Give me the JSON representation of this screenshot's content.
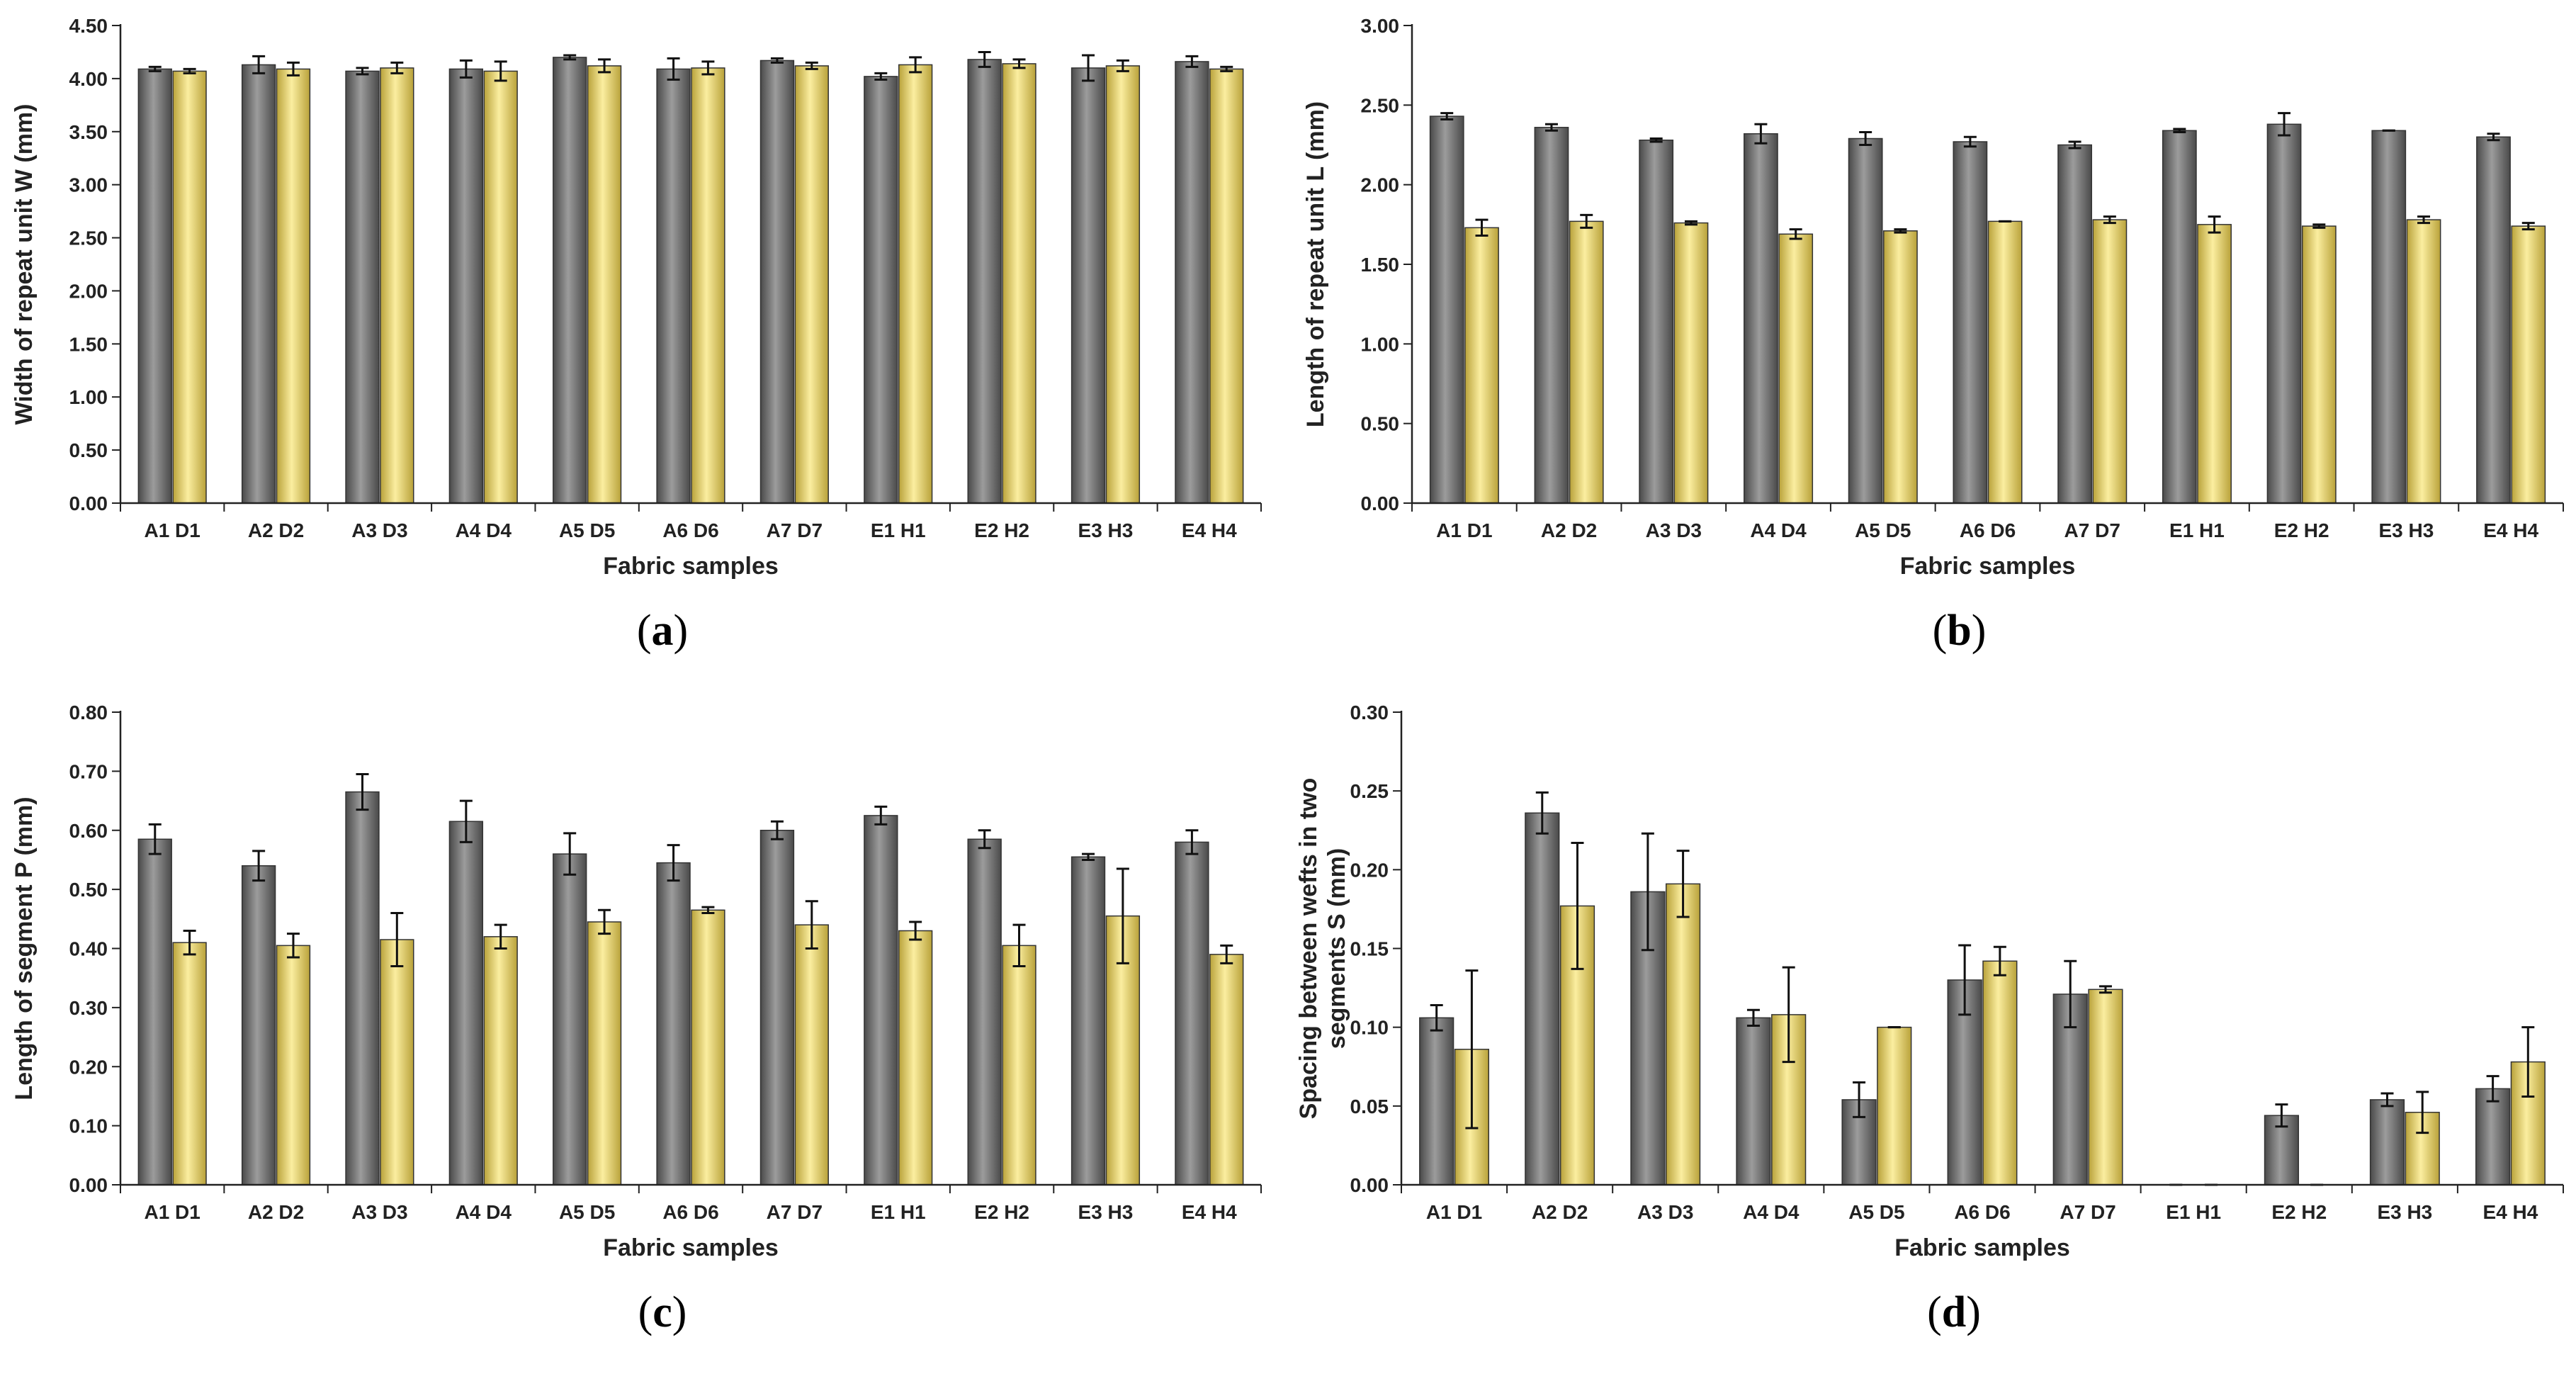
{
  "colors": {
    "series1": "#7a7a7a",
    "series1_dark": "#4a4a4a",
    "series2": "#f2dc6e",
    "series2_dark": "#b9a23a",
    "axis": "#222222"
  },
  "chart_data": [
    {
      "type": "bar",
      "caption_letter": "a",
      "ylabel": "Width of repeat unit  W (mm)",
      "xlabel": "Fabric samples",
      "ylim": [
        0,
        4.5
      ],
      "ytick_step": 0.5,
      "ytick_decimals": 2,
      "categories": [
        "A1 D1",
        "A2 D2",
        "A3 D3",
        "A4 D4",
        "A5 D5",
        "A6 D6",
        "A7 D7",
        "E1 H1",
        "E2 H2",
        "E3 H3",
        "E4 H4"
      ],
      "grid": false,
      "series": [
        {
          "values": [
            4.09,
            4.13,
            4.07,
            4.09,
            4.2,
            4.09,
            4.17,
            4.02,
            4.18,
            4.1,
            4.16
          ],
          "errors": [
            0.02,
            0.08,
            0.03,
            0.08,
            0.02,
            0.1,
            0.02,
            0.03,
            0.07,
            0.12,
            0.05
          ]
        },
        {
          "values": [
            4.07,
            4.09,
            4.1,
            4.07,
            4.12,
            4.1,
            4.12,
            4.13,
            4.14,
            4.12,
            4.09
          ],
          "errors": [
            0.02,
            0.06,
            0.05,
            0.09,
            0.06,
            0.06,
            0.03,
            0.07,
            0.04,
            0.05,
            0.02
          ]
        }
      ]
    },
    {
      "type": "bar",
      "caption_letter": "b",
      "ylabel": "Length of repeat unit  L (mm)",
      "xlabel": "Fabric samples",
      "ylim": [
        0,
        3.0
      ],
      "ytick_step": 0.5,
      "ytick_decimals": 2,
      "categories": [
        "A1 D1",
        "A2 D2",
        "A3 D3",
        "A4 D4",
        "A5 D5",
        "A6 D6",
        "A7 D7",
        "E1 H1",
        "E2 H2",
        "E3 H3",
        "E4 H4"
      ],
      "grid": false,
      "series": [
        {
          "values": [
            2.43,
            2.36,
            2.28,
            2.32,
            2.29,
            2.27,
            2.25,
            2.34,
            2.38,
            2.34,
            2.3
          ],
          "errors": [
            0.02,
            0.02,
            0.01,
            0.06,
            0.04,
            0.03,
            0.02,
            0.01,
            0.07,
            0.0,
            0.02
          ]
        },
        {
          "values": [
            1.73,
            1.77,
            1.76,
            1.69,
            1.71,
            1.77,
            1.78,
            1.75,
            1.74,
            1.78,
            1.74
          ],
          "errors": [
            0.05,
            0.04,
            0.01,
            0.03,
            0.01,
            0.0,
            0.02,
            0.05,
            0.01,
            0.02,
            0.02
          ]
        }
      ]
    },
    {
      "type": "bar",
      "caption_letter": "c",
      "ylabel": "Length of segment  P (mm)",
      "xlabel": "Fabric samples",
      "ylim": [
        0,
        0.8
      ],
      "ytick_step": 0.1,
      "ytick_decimals": 2,
      "categories": [
        "A1 D1",
        "A2 D2",
        "A3 D3",
        "A4 D4",
        "A5 D5",
        "A6 D6",
        "A7 D7",
        "E1 H1",
        "E2 H2",
        "E3 H3",
        "E4 H4"
      ],
      "grid": false,
      "series": [
        {
          "values": [
            0.585,
            0.54,
            0.665,
            0.615,
            0.56,
            0.545,
            0.6,
            0.625,
            0.585,
            0.555,
            0.58
          ],
          "errors": [
            0.025,
            0.025,
            0.03,
            0.035,
            0.035,
            0.03,
            0.015,
            0.015,
            0.015,
            0.005,
            0.02
          ]
        },
        {
          "values": [
            0.41,
            0.405,
            0.415,
            0.42,
            0.445,
            0.465,
            0.44,
            0.43,
            0.405,
            0.455,
            0.39
          ],
          "errors": [
            0.02,
            0.02,
            0.045,
            0.02,
            0.02,
            0.005,
            0.04,
            0.015,
            0.035,
            0.08,
            0.015
          ]
        }
      ]
    },
    {
      "type": "bar",
      "caption_letter": "d",
      "ylabel": "Spacing between wefts in two segments S (mm)",
      "ylabel_lines": [
        "Spacing between wefts in two",
        "segments S (mm)"
      ],
      "xlabel": "Fabric samples",
      "ylim": [
        0,
        0.3
      ],
      "ytick_step": 0.05,
      "ytick_decimals": 2,
      "categories": [
        "A1 D1",
        "A2 D2",
        "A3 D3",
        "A4 D4",
        "A5 D5",
        "A6 D6",
        "A7 D7",
        "E1 H1",
        "E2 H2",
        "E3 H3",
        "E4 H4"
      ],
      "grid": false,
      "series": [
        {
          "values": [
            0.106,
            0.236,
            0.186,
            0.106,
            0.054,
            0.13,
            0.121,
            0.0,
            0.044,
            0.054,
            0.061
          ],
          "errors": [
            0.008,
            0.013,
            0.037,
            0.005,
            0.011,
            0.022,
            0.021,
            0.0,
            0.007,
            0.004,
            0.008
          ]
        },
        {
          "values": [
            0.086,
            0.177,
            0.191,
            0.108,
            0.1,
            0.142,
            0.124,
            0.0,
            0.0,
            0.046,
            0.078
          ],
          "errors": [
            0.05,
            0.04,
            0.021,
            0.03,
            0.0,
            0.009,
            0.002,
            0.0,
            0.0,
            0.013,
            0.022
          ]
        }
      ]
    }
  ]
}
